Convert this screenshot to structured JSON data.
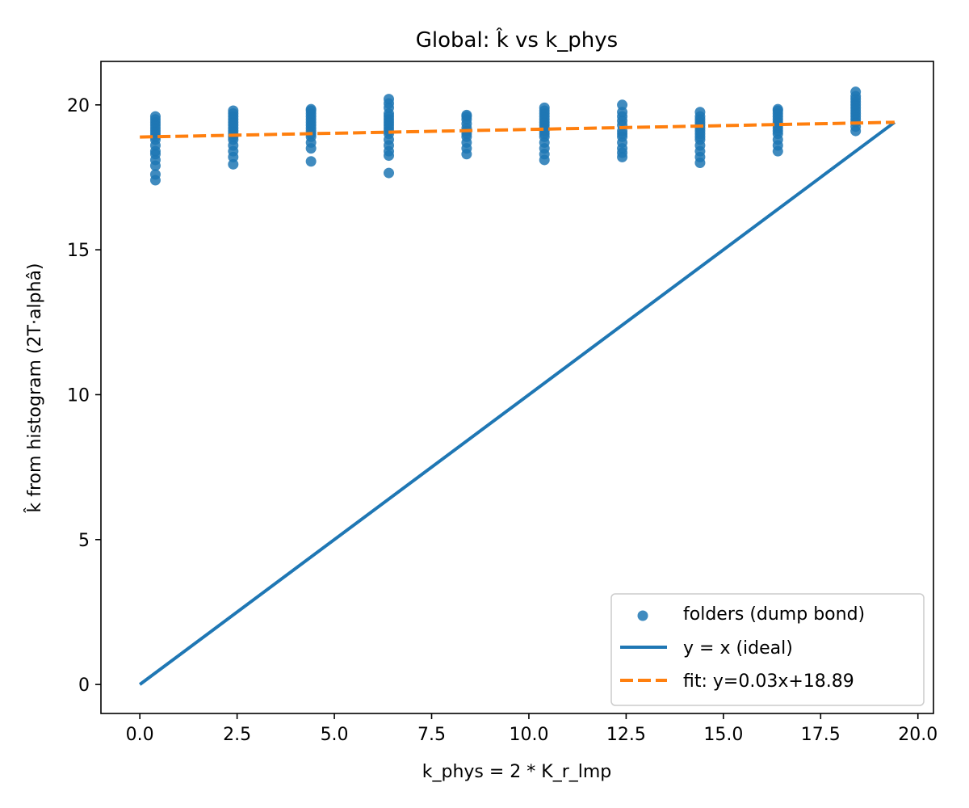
{
  "chart_data": {
    "type": "scatter",
    "title": "Global: k̂ vs k_phys",
    "xlabel": "k_phys = 2 * K_r_lmp",
    "ylabel": "k̂ from histogram (2T·alphâ)",
    "xlim": [
      -1.0,
      20.4
    ],
    "ylim": [
      -1.0,
      21.5
    ],
    "x_ticks": [
      0.0,
      2.5,
      5.0,
      7.5,
      10.0,
      12.5,
      15.0,
      17.5,
      20.0
    ],
    "x_tick_labels": [
      "0.0",
      "2.5",
      "5.0",
      "7.5",
      "10.0",
      "12.5",
      "15.0",
      "17.5",
      "20.0"
    ],
    "y_ticks": [
      0,
      5,
      10,
      15,
      20
    ],
    "y_tick_labels": [
      "0",
      "5",
      "10",
      "15",
      "20"
    ],
    "grid": false,
    "legend_position": "lower-right",
    "colors": {
      "scatter": "#1f77b4",
      "ideal": "#1f77b4",
      "fit": "#ff7f0e"
    },
    "series": [
      {
        "name": "folders (dump bond)",
        "kind": "scatter",
        "groups": [
          {
            "x": 0.4,
            "y": [
              17.4,
              17.6,
              17.9,
              18.1,
              18.3,
              18.4,
              18.6,
              18.8,
              18.9,
              19.0,
              19.1,
              19.2,
              19.3,
              19.4,
              19.5,
              19.6
            ]
          },
          {
            "x": 2.4,
            "y": [
              17.95,
              18.2,
              18.4,
              18.6,
              18.8,
              18.9,
              19.0,
              19.1,
              19.2,
              19.3,
              19.4,
              19.5,
              19.6,
              19.7,
              19.8
            ]
          },
          {
            "x": 4.4,
            "y": [
              18.05,
              18.5,
              18.7,
              18.9,
              19.0,
              19.1,
              19.2,
              19.3,
              19.4,
              19.5,
              19.6,
              19.7,
              19.8,
              19.85
            ]
          },
          {
            "x": 6.4,
            "y": [
              17.65,
              18.25,
              18.4,
              18.6,
              18.8,
              19.0,
              19.1,
              19.2,
              19.3,
              19.4,
              19.5,
              19.6,
              19.7,
              19.9,
              20.05,
              20.2
            ]
          },
          {
            "x": 8.4,
            "y": [
              18.3,
              18.5,
              18.7,
              18.9,
              19.0,
              19.1,
              19.2,
              19.35,
              19.5,
              19.6,
              19.65
            ]
          },
          {
            "x": 10.4,
            "y": [
              18.1,
              18.3,
              18.5,
              18.7,
              18.9,
              19.0,
              19.1,
              19.2,
              19.3,
              19.4,
              19.5,
              19.6,
              19.7,
              19.8,
              19.9
            ]
          },
          {
            "x": 12.4,
            "y": [
              18.2,
              18.35,
              18.5,
              18.7,
              18.9,
              19.0,
              19.1,
              19.3,
              19.45,
              19.6,
              19.75,
              20.0
            ]
          },
          {
            "x": 14.4,
            "y": [
              18.0,
              18.2,
              18.4,
              18.6,
              18.8,
              18.9,
              19.0,
              19.1,
              19.2,
              19.3,
              19.4,
              19.5,
              19.6,
              19.75
            ]
          },
          {
            "x": 16.4,
            "y": [
              18.4,
              18.6,
              18.8,
              19.0,
              19.1,
              19.2,
              19.3,
              19.4,
              19.5,
              19.6,
              19.7,
              19.8,
              19.85
            ]
          },
          {
            "x": 18.4,
            "y": [
              19.1,
              19.25,
              19.4,
              19.5,
              19.6,
              19.7,
              19.8,
              19.9,
              20.0,
              20.1,
              20.2,
              20.3,
              20.45
            ]
          }
        ]
      },
      {
        "name": "y = x (ideal)",
        "kind": "line",
        "style": "solid",
        "x": [
          0.0,
          19.4
        ],
        "y": [
          0.0,
          19.4
        ]
      },
      {
        "name": "fit: y=0.03x+18.89",
        "kind": "line",
        "style": "dashed",
        "x": [
          0.0,
          19.4
        ],
        "y": [
          18.89,
          19.4
        ]
      }
    ]
  }
}
